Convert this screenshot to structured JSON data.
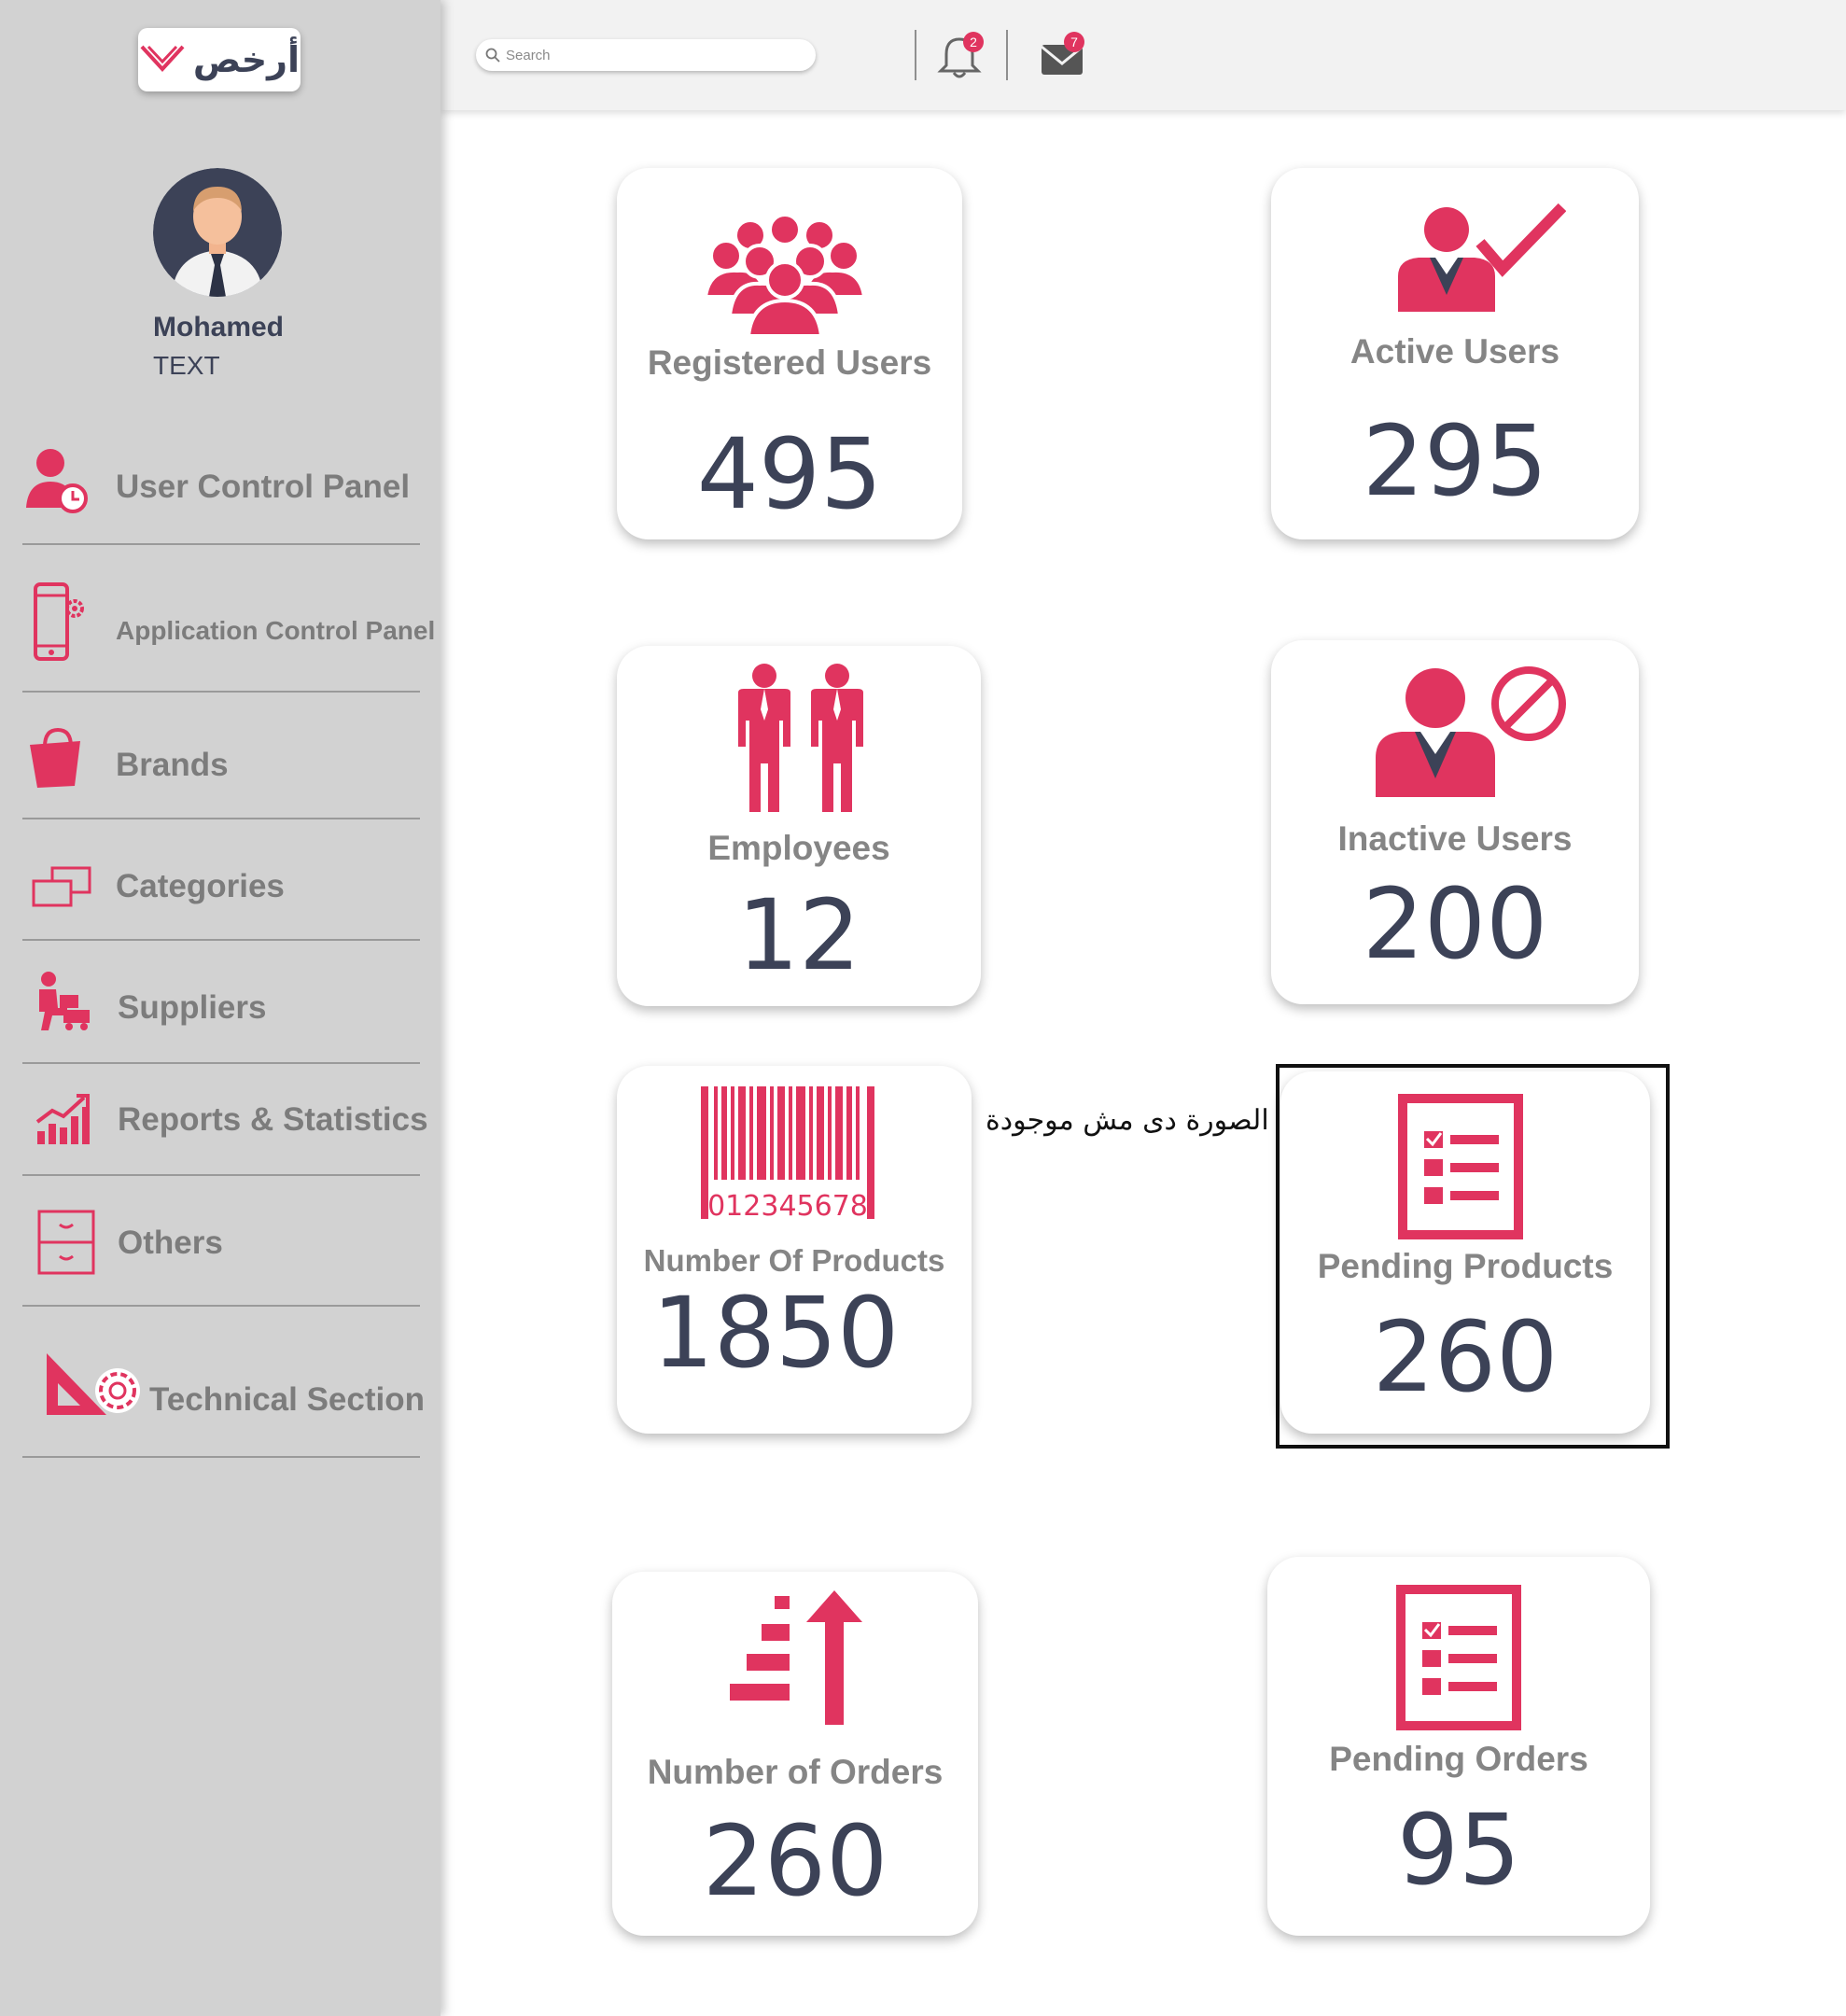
{
  "brand": {
    "logo_text": "أرخص",
    "accent": "#e0345f",
    "ink": "#3c4257"
  },
  "user": {
    "name": "Mohamed",
    "subtitle": "TEXT",
    "avatar_icon": "user-avatar-icon"
  },
  "sidebar": {
    "items": [
      {
        "label": "User Control Panel",
        "icon": "user-clock-icon"
      },
      {
        "label": "Application Control Panel",
        "icon": "phone-gear-icon"
      },
      {
        "label": "Brands",
        "icon": "shopping-bag-icon"
      },
      {
        "label": "Categories",
        "icon": "categories-icon"
      },
      {
        "label": "Suppliers",
        "icon": "supplier-icon"
      },
      {
        "label": "Reports & Statistics",
        "icon": "bar-chart-icon"
      },
      {
        "label": "Others",
        "icon": "drawer-cabinet-icon"
      },
      {
        "label": "Technical Section",
        "icon": "ruler-gear-icon"
      }
    ]
  },
  "header": {
    "search_placeholder": "Search",
    "notifications_count": "2",
    "messages_count": "7"
  },
  "cards": {
    "registered_users": {
      "label": "Registered Users",
      "value": "495",
      "icon": "group-users-icon"
    },
    "active_users": {
      "label": "Active Users",
      "value": "295",
      "icon": "user-check-icon"
    },
    "employees": {
      "label": "Employees",
      "value": "12",
      "icon": "employees-icon"
    },
    "inactive_users": {
      "label": "Inactive Users",
      "value": "200",
      "icon": "user-blocked-icon"
    },
    "number_of_products": {
      "label": "Number Of Products",
      "value": "1850",
      "icon": "barcode-icon",
      "barcode_text": "012345678"
    },
    "pending_products": {
      "label": "Pending Products",
      "value": "260",
      "icon": "checklist-icon"
    },
    "number_of_orders": {
      "label": "Number of Orders",
      "value": "260",
      "icon": "orders-arrow-icon"
    },
    "pending_orders": {
      "label": "Pending Orders",
      "value": "95",
      "icon": "checklist-icon"
    }
  },
  "annotation": {
    "note": "الصورة دى مش موجودة"
  }
}
